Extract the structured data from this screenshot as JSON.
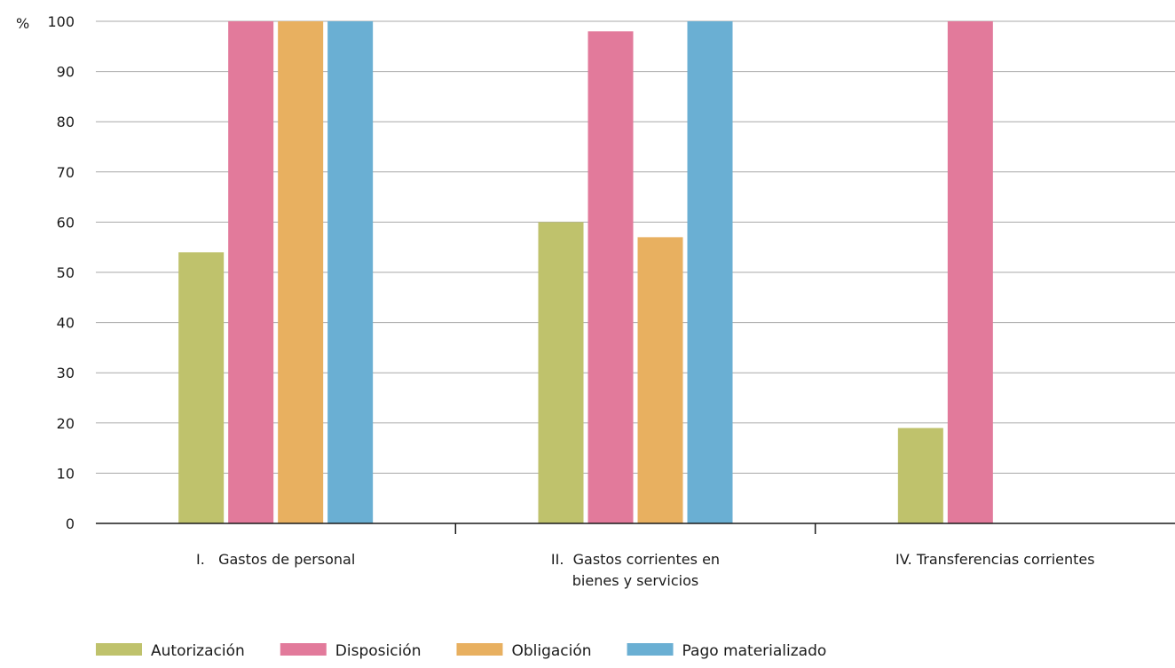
{
  "chart_data": {
    "type": "bar",
    "ylabel": "%",
    "ylim": [
      0,
      100
    ],
    "yticks": [
      0,
      10,
      20,
      30,
      40,
      50,
      60,
      70,
      80,
      90,
      100
    ],
    "grid": true,
    "legend_position": "bottom-left",
    "categories": [
      [
        "I.   Gastos de personal"
      ],
      [
        "II.  Gastos corrientes en",
        "bienes y servicios"
      ],
      [
        "IV. Transferencias corrientes"
      ]
    ],
    "series": [
      {
        "name": "Autorización",
        "color": "#bfc26c",
        "values": [
          54,
          60,
          19
        ]
      },
      {
        "name": "Disposición",
        "color": "#e27a9b",
        "values": [
          100,
          98,
          100
        ]
      },
      {
        "name": "Obligación",
        "color": "#e8b060",
        "values": [
          100,
          57,
          null
        ]
      },
      {
        "name": "Pago materializado",
        "color": "#6aafd3",
        "values": [
          100,
          100,
          null
        ]
      }
    ]
  }
}
